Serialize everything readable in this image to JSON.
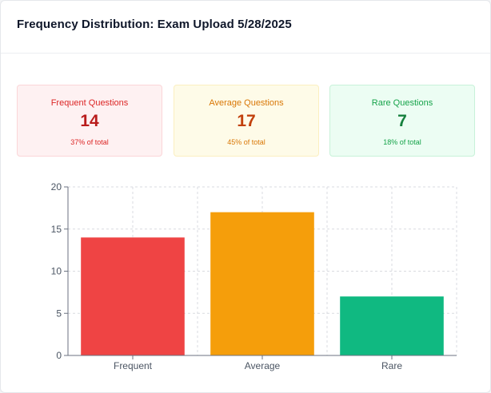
{
  "page": {
    "title": "Frequency Distribution: Exam Upload 5/28/2025"
  },
  "stats": [
    {
      "id": "frequent",
      "label": "Frequent Questions",
      "count": "14",
      "percent": "37% of total",
      "bg": "#fef1f2",
      "border": "#fbd5d8",
      "text": "#dc2626",
      "num": "#b91c1c"
    },
    {
      "id": "average",
      "label": "Average Questions",
      "count": "17",
      "percent": "45% of total",
      "bg": "#fefbe8",
      "border": "#fbefc0",
      "text": "#d97706",
      "num": "#c2410c"
    },
    {
      "id": "rare",
      "label": "Rare Questions",
      "count": "7",
      "percent": "18% of total",
      "bg": "#ecfdf3",
      "border": "#c8f2d9",
      "text": "#16a34a",
      "num": "#15803d"
    }
  ],
  "chart_data": {
    "type": "bar",
    "categories": [
      "Frequent",
      "Average",
      "Rare"
    ],
    "values": [
      14,
      17,
      7
    ],
    "colors": [
      "#ef4444",
      "#f59e0b",
      "#10b981"
    ],
    "title": "",
    "xlabel": "",
    "ylabel": "",
    "ylim": [
      0,
      20
    ],
    "yticks": [
      "0",
      "5",
      "10",
      "15",
      "20"
    ],
    "grid": true,
    "grid_style": "dashed"
  }
}
